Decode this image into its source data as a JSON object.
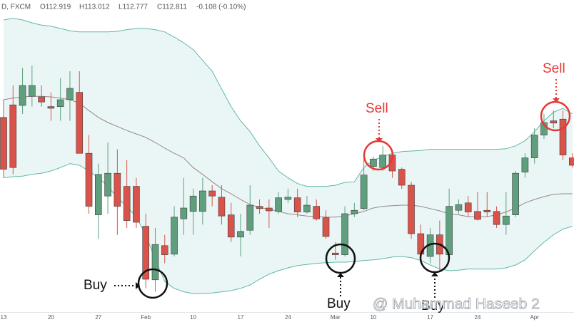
{
  "chart_data": {
    "type": "candlestick",
    "header": {
      "symbol": "D, FXCM",
      "open": "O112.919",
      "high": "H113.012",
      "low": "L112.777",
      "close": "C112.811",
      "change": "-0.108 (-0.10%)"
    },
    "watermark": "@ Muhammad Haseeb 2",
    "categories": [
      "13",
      null,
      null,
      null,
      null,
      "20",
      null,
      null,
      null,
      null,
      "27",
      null,
      null,
      null,
      null,
      "Feb",
      null,
      null,
      null,
      null,
      "10",
      null,
      null,
      null,
      null,
      "17",
      null,
      null,
      null,
      null,
      "24",
      null,
      null,
      null,
      null,
      "Mar",
      null,
      null,
      null,
      "10",
      null,
      null,
      null,
      null,
      null,
      "17",
      null,
      null,
      null,
      null,
      "24",
      null,
      null,
      null,
      null,
      null,
      "Apr",
      null,
      null,
      null,
      null
    ],
    "open": [
      112.94,
      113.16,
      113.15,
      113.31,
      113.3,
      113.13,
      113.13,
      113.25,
      113.38,
      112.31,
      111.23,
      111.56,
      111.96,
      111.73,
      111.73,
      111.03,
      110.09,
      110.69,
      110.54,
      111.16,
      111.29,
      111.29,
      111.65,
      111.54,
      111.23,
      110.84,
      110.96,
      111.38,
      111.35,
      111.29,
      111.5,
      111.53,
      111.28,
      111.38,
      111.18,
      110.56,
      110.53,
      111.25,
      111.34,
      112.08,
      112.06,
      112.28,
      112.03,
      111.75,
      110.9,
      110.5,
      110.88,
      110.53,
      111.31,
      111.44,
      111.29,
      111.31,
      111.29,
      111.06,
      111.23,
      111.98,
      112.23,
      112.63,
      112.88,
      112.91,
      112.23
    ],
    "high": [
      113.25,
      113.5,
      113.81,
      113.85,
      113.5,
      113.38,
      113.63,
      113.75,
      113.75,
      112.63,
      112.13,
      112.5,
      112.38,
      112.19,
      111.88,
      111.25,
      111.0,
      110.88,
      111.38,
      111.88,
      111.69,
      111.88,
      111.75,
      111.75,
      111.44,
      111.25,
      111.75,
      111.5,
      111.5,
      111.63,
      111.69,
      111.69,
      111.56,
      111.5,
      111.31,
      110.75,
      111.38,
      111.44,
      112.31,
      112.25,
      112.44,
      112.38,
      112.06,
      111.81,
      111.06,
      111.0,
      111.13,
      111.69,
      111.5,
      111.56,
      111.63,
      111.63,
      111.38,
      111.63,
      112.0,
      112.31,
      112.75,
      113.0,
      113.06,
      113.06,
      112.31
    ],
    "low": [
      111.88,
      111.94,
      113.0,
      113.13,
      113.13,
      112.88,
      112.88,
      112.88,
      112.31,
      111.25,
      110.81,
      111.25,
      110.88,
      111.0,
      111.0,
      109.94,
      109.88,
      110.38,
      110.5,
      110.88,
      110.88,
      111.06,
      111.38,
      111.06,
      110.75,
      110.5,
      110.88,
      111.25,
      111.0,
      111.25,
      111.44,
      111.19,
      111.25,
      111.13,
      110.81,
      110.44,
      110.5,
      111.19,
      111.31,
      112.0,
      112.0,
      111.88,
      111.69,
      110.81,
      110.5,
      110.38,
      110.25,
      110.5,
      111.25,
      111.19,
      111.13,
      111.19,
      111.0,
      110.88,
      111.19,
      111.88,
      112.13,
      112.56,
      112.75,
      112.19,
      112.06
    ],
    "close": [
      112.03,
      112.06,
      113.5,
      113.5,
      113.21,
      113.1,
      113.25,
      113.45,
      112.31,
      111.38,
      111.94,
      111.96,
      111.38,
      111.13,
      111.1,
      110.1,
      110.71,
      110.53,
      111.19,
      111.35,
      111.56,
      111.65,
      111.56,
      111.21,
      110.84,
      110.94,
      111.4,
      111.34,
      111.3,
      111.53,
      111.54,
      111.28,
      111.4,
      111.16,
      110.85,
      110.53,
      111.25,
      111.31,
      111.93,
      112.21,
      112.28,
      112.0,
      111.75,
      110.9,
      110.54,
      110.88,
      110.54,
      111.38,
      111.41,
      111.28,
      111.15,
      111.28,
      111.06,
      111.21,
      111.96,
      112.23,
      112.63,
      112.85,
      112.84,
      112.28,
      112.1
    ],
    "bands": {
      "upper": [
        114.65,
        114.68,
        114.65,
        114.6,
        114.56,
        114.54,
        114.5,
        114.46,
        114.44,
        114.44,
        114.44,
        114.44,
        114.45,
        114.48,
        114.5,
        114.5,
        114.48,
        114.44,
        114.35,
        114.25,
        114.13,
        113.94,
        113.75,
        113.44,
        113.13,
        112.88,
        112.69,
        112.44,
        112.23,
        112.0,
        111.88,
        111.78,
        111.73,
        111.73,
        111.73,
        111.75,
        111.8,
        111.81,
        112.06,
        112.19,
        112.25,
        112.31,
        112.34,
        112.35,
        112.36,
        112.38,
        112.38,
        112.38,
        112.38,
        112.38,
        112.38,
        112.38,
        112.38,
        112.39,
        112.44,
        112.53,
        112.69,
        112.88,
        113.03,
        113.1,
        113.0
      ],
      "middle": [
        113.25,
        113.28,
        113.3,
        113.31,
        113.31,
        113.3,
        113.28,
        113.25,
        113.19,
        113.06,
        112.94,
        112.85,
        112.78,
        112.71,
        112.65,
        112.59,
        112.5,
        112.4,
        112.31,
        112.23,
        112.06,
        111.94,
        111.81,
        111.69,
        111.6,
        111.5,
        111.41,
        111.36,
        111.33,
        111.29,
        111.25,
        111.23,
        111.21,
        111.2,
        111.19,
        111.19,
        111.21,
        111.25,
        111.29,
        111.35,
        111.38,
        111.39,
        111.4,
        111.4,
        111.38,
        111.34,
        111.3,
        111.25,
        111.23,
        111.2,
        111.19,
        111.2,
        111.23,
        111.28,
        111.35,
        111.44,
        111.5,
        111.55,
        111.59,
        111.6,
        111.6
      ],
      "lower": [
        111.88,
        111.9,
        111.91,
        111.94,
        111.96,
        112.0,
        112.06,
        112.13,
        112.1,
        112.0,
        111.88,
        111.73,
        111.53,
        111.38,
        111.19,
        110.88,
        110.44,
        110.06,
        109.94,
        109.88,
        109.85,
        109.85,
        109.86,
        109.88,
        109.9,
        109.94,
        110.0,
        110.1,
        110.19,
        110.25,
        110.3,
        110.34,
        110.36,
        110.38,
        110.39,
        110.4,
        110.4,
        110.41,
        110.43,
        110.44,
        110.46,
        110.49,
        110.5,
        110.48,
        110.43,
        110.35,
        110.28,
        110.25,
        110.26,
        110.28,
        110.28,
        110.28,
        110.28,
        110.3,
        110.35,
        110.44,
        110.6,
        110.75,
        110.88,
        110.98,
        111.03
      ]
    },
    "colors": {
      "up": "#5f9f7e",
      "down": "#d9534a",
      "band": "#5fb8a8",
      "middle": "#9b8585",
      "fill": "rgba(178,223,219,0.28)"
    },
    "ylim": [
      109.5,
      115
    ],
    "annotations": [
      "Buy",
      "Buy",
      "Buy",
      "Sell",
      "Sell"
    ]
  }
}
